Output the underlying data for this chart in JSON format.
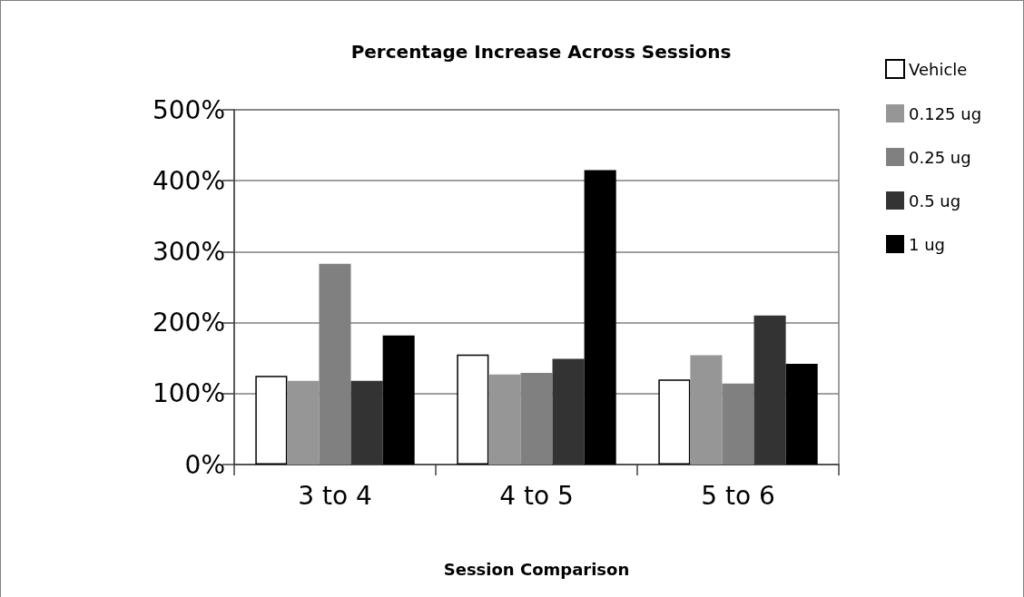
{
  "chart_data": {
    "type": "bar",
    "title": "Percentage Increase Across Sessions",
    "xlabel": "Session Comparison",
    "categories": [
      "3 to 4",
      "4 to 5",
      "5 to 6"
    ],
    "series": [
      {
        "name": "Vehicle",
        "color": "#ffffff",
        "values": [
          125,
          155,
          120
        ]
      },
      {
        "name": "0.125 ug",
        "color": "#969696",
        "values": [
          118,
          127,
          154
        ]
      },
      {
        "name": "0.25 ug",
        "color": "#808080",
        "values": [
          283,
          129,
          114
        ]
      },
      {
        "name": "0.5 ug",
        "color": "#333333",
        "values": [
          118,
          149,
          210
        ]
      },
      {
        "name": "1 ug",
        "color": "#000000",
        "values": [
          182,
          415,
          142
        ]
      }
    ],
    "ylim": [
      0,
      500
    ],
    "yticks": [
      {
        "value": 0,
        "label": "0%"
      },
      {
        "value": 100,
        "label": "100%"
      },
      {
        "value": 200,
        "label": "200%"
      },
      {
        "value": 300,
        "label": "300%"
      },
      {
        "value": 400,
        "label": "400%"
      },
      {
        "value": 500,
        "label": "500%"
      }
    ],
    "grid": "y",
    "legend": "top right"
  }
}
